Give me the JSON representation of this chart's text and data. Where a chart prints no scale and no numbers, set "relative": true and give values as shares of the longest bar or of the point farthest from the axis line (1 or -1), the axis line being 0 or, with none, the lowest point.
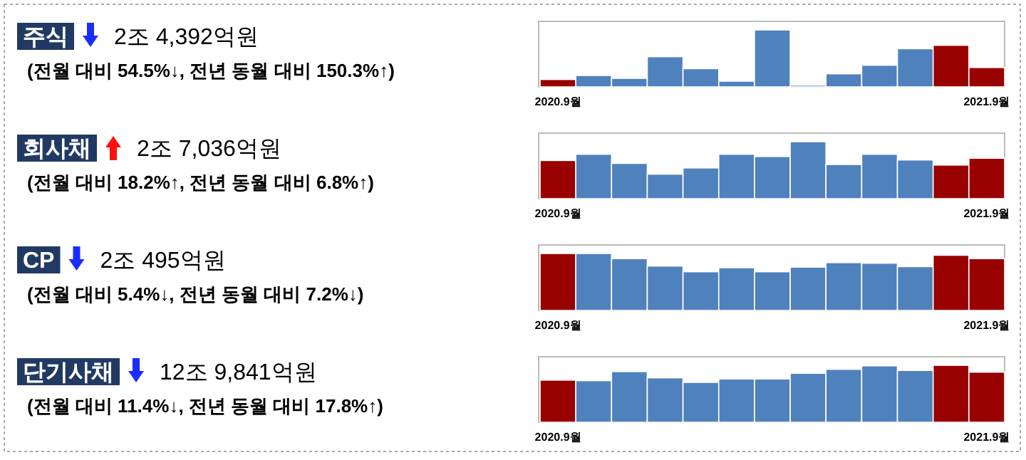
{
  "chart_data": [
    {
      "type": "other",
      "title": "주식",
      "subtitle": "2조 4,392억원",
      "annotations": [
        "(전월 대비 54.5%↓, 전년 동월 대비 150.3%↑)"
      ]
    },
    {
      "type": "bar",
      "relative": true,
      "categories": [
        "2020.9월",
        null,
        null,
        null,
        null,
        null,
        null,
        null,
        null,
        null,
        null,
        null,
        "2021.9월"
      ],
      "values": [
        0.13,
        0.2,
        0.15,
        0.53,
        0.32,
        0.1,
        1,
        0.03,
        0.23,
        0.38,
        0.67,
        0.73,
        0.34
      ],
      "colors": [
        "#990000",
        "#4f81bd",
        "#4f81bd",
        "#4f81bd",
        "#4f81bd",
        "#4f81bd",
        "#4f81bd",
        "#4f81bd",
        "#4f81bd",
        "#4f81bd",
        "#4f81bd",
        "#990000",
        "#990000"
      ]
    },
    {
      "type": "other",
      "title": "회사채",
      "subtitle": "2조 7,036억원",
      "annotations": [
        "(전월 대비 18.2%↑, 전년 동월 대비 6.8%↑)"
      ]
    },
    {
      "type": "bar",
      "relative": true,
      "categories": [
        "2020.9월",
        null,
        null,
        null,
        null,
        null,
        null,
        null,
        null,
        null,
        null,
        null,
        "2021.9월"
      ],
      "values": [
        0.67,
        0.78,
        0.62,
        0.43,
        0.54,
        0.78,
        0.74,
        1,
        0.6,
        0.78,
        0.68,
        0.59,
        0.71
      ],
      "colors": [
        "#990000",
        "#4f81bd",
        "#4f81bd",
        "#4f81bd",
        "#4f81bd",
        "#4f81bd",
        "#4f81bd",
        "#4f81bd",
        "#4f81bd",
        "#4f81bd",
        "#4f81bd",
        "#990000",
        "#990000"
      ]
    },
    {
      "type": "other",
      "title": "CP",
      "subtitle": "2조 495억원",
      "annotations": [
        "(전월 대비 5.4%↓, 전년 동월 대비 7.2%↓)"
      ]
    },
    {
      "type": "bar",
      "relative": true,
      "categories": [
        "2020.9월",
        null,
        null,
        null,
        null,
        null,
        null,
        null,
        null,
        null,
        null,
        null,
        "2021.9월"
      ],
      "values": [
        1,
        1,
        0.91,
        0.78,
        0.68,
        0.75,
        0.68,
        0.76,
        0.84,
        0.83,
        0.77,
        0.97,
        0.91
      ],
      "colors": [
        "#990000",
        "#4f81bd",
        "#4f81bd",
        "#4f81bd",
        "#4f81bd",
        "#4f81bd",
        "#4f81bd",
        "#4f81bd",
        "#4f81bd",
        "#4f81bd",
        "#4f81bd",
        "#990000",
        "#990000"
      ]
    },
    {
      "type": "other",
      "title": "단기사채",
      "subtitle": "12조 9,841억원",
      "annotations": [
        "(전월 대비 11.4%↓, 전년 동월 대비 17.8%↑)"
      ]
    },
    {
      "type": "bar",
      "relative": true,
      "categories": [
        "2020.9월",
        null,
        null,
        null,
        null,
        null,
        null,
        null,
        null,
        null,
        null,
        null,
        "2021.9월"
      ],
      "values": [
        0.74,
        0.73,
        0.89,
        0.78,
        0.7,
        0.76,
        0.76,
        0.86,
        0.93,
        0.99,
        0.91,
        1,
        0.88
      ],
      "colors": [
        "#990000",
        "#4f81bd",
        "#4f81bd",
        "#4f81bd",
        "#4f81bd",
        "#4f81bd",
        "#4f81bd",
        "#4f81bd",
        "#4f81bd",
        "#4f81bd",
        "#4f81bd",
        "#990000",
        "#990000"
      ]
    }
  ]
}
